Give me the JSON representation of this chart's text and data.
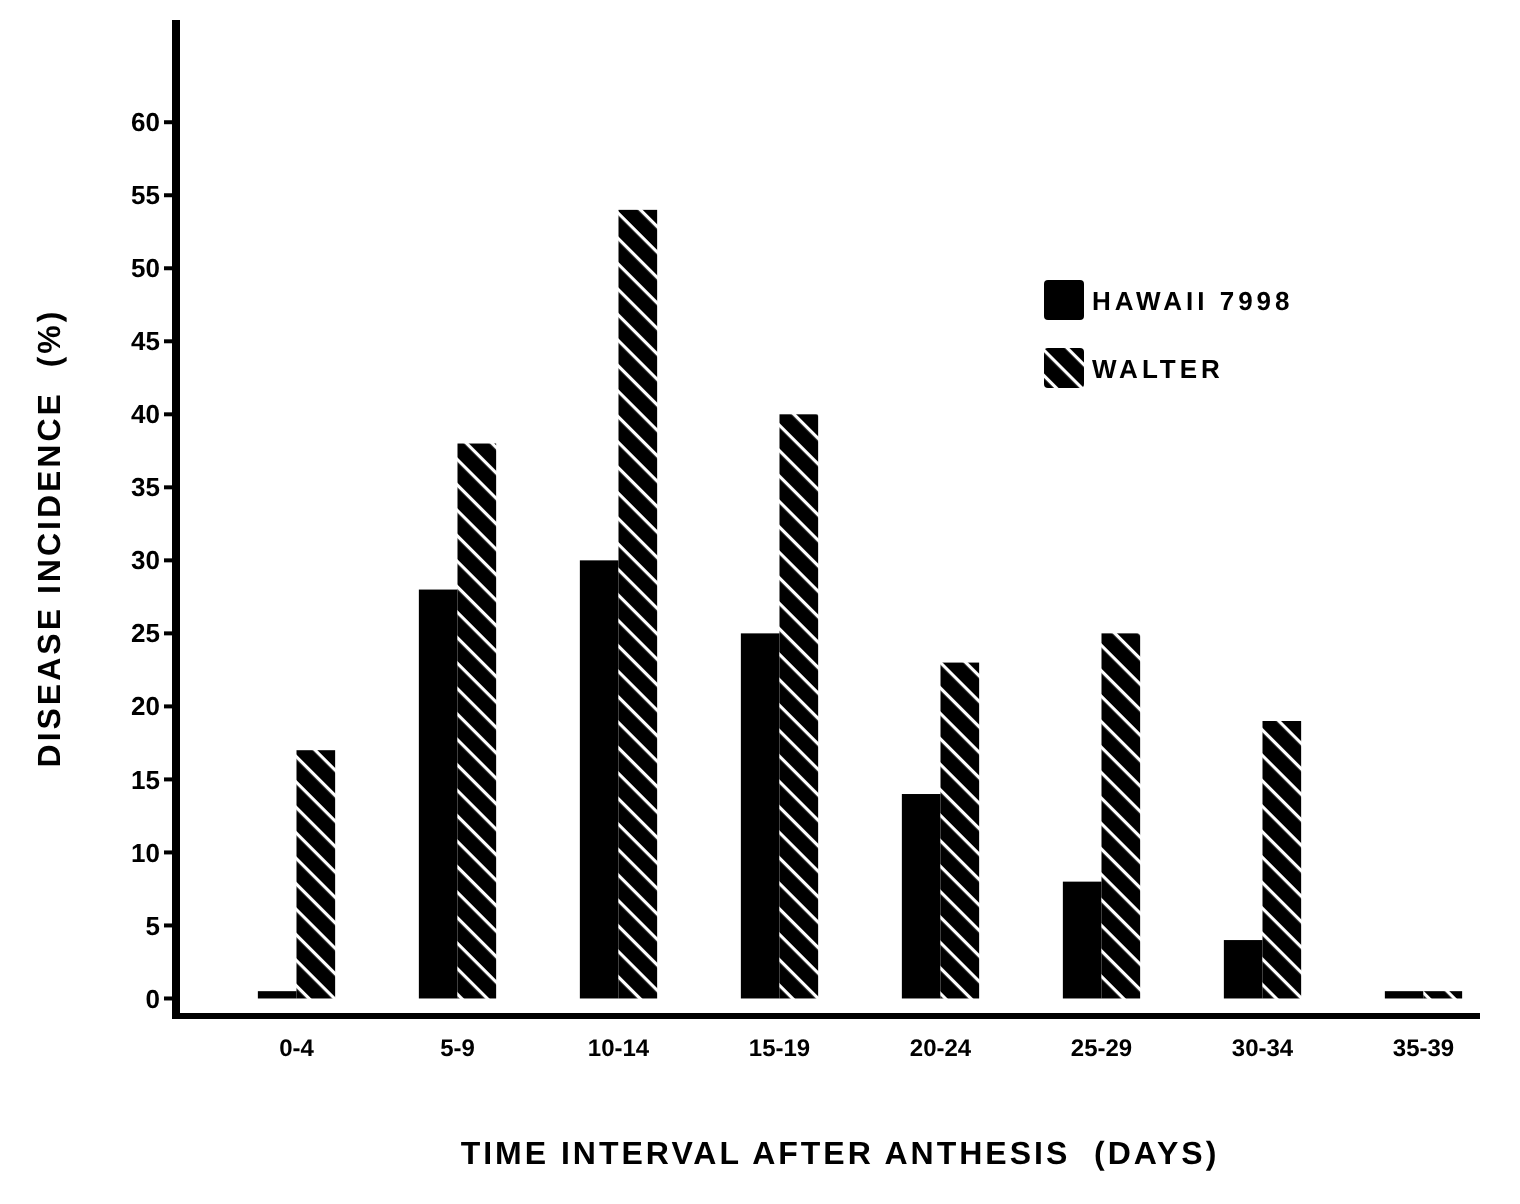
{
  "chart_data": {
    "type": "bar",
    "xlabel": "TIME INTERVAL AFTER ANTHESIS  (DAYS)",
    "ylabel": "DISEASE INCIDENCE  (%)",
    "categories": [
      "0-4",
      "5-9",
      "10-14",
      "15-19",
      "20-24",
      "25-29",
      "30-34",
      "35-39"
    ],
    "ylim": [
      -1.2,
      67
    ],
    "yticks": [
      0,
      5,
      10,
      15,
      20,
      25,
      30,
      35,
      40,
      45,
      50,
      55,
      60
    ],
    "legend": "top right",
    "series": [
      {
        "name": "HAWAII 7998",
        "color": "#000000",
        "values": [
          0.5,
          28,
          30,
          25,
          14,
          8,
          4,
          0.5
        ]
      },
      {
        "name": "WALTER",
        "color": "#000000",
        "values": [
          17,
          38,
          54,
          40,
          23,
          25,
          19,
          0.5
        ]
      }
    ]
  }
}
